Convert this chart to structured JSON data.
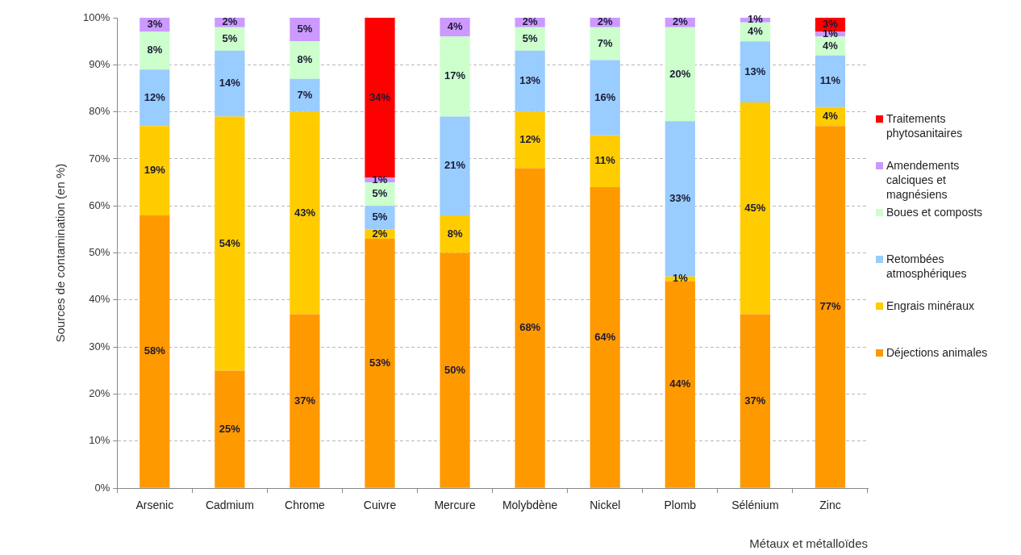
{
  "chart_data": {
    "type": "bar",
    "stacked": true,
    "ylabel": "Sources de contamination (en %)",
    "xlabel": "Métaux et métalloïdes",
    "categories": [
      "Arsenic",
      "Cadmium",
      "Chrome",
      "Cuivre",
      "Mercure",
      "Molybdène",
      "Nickel",
      "Plomb",
      "Sélénium",
      "Zinc"
    ],
    "ylim": [
      0,
      100
    ],
    "yticks": [
      {
        "value": 0,
        "label": "0%"
      },
      {
        "value": 10,
        "label": "10%"
      },
      {
        "value": 20,
        "label": "20%"
      },
      {
        "value": 30,
        "label": "30%"
      },
      {
        "value": 40,
        "label": "40%"
      },
      {
        "value": 50,
        "label": "50%"
      },
      {
        "value": 60,
        "label": "60%"
      },
      {
        "value": 70,
        "label": "70%"
      },
      {
        "value": 80,
        "label": "80%"
      },
      {
        "value": 90,
        "label": "90%"
      },
      {
        "value": 100,
        "label": "100%"
      }
    ],
    "grid": "y",
    "legend": "right",
    "series": [
      {
        "name": "Déjections animales",
        "color": "#ff9900",
        "values": [
          58,
          25,
          37,
          53,
          50,
          68,
          64,
          44,
          37,
          77
        ],
        "value_labels": [
          "58%",
          "25%",
          "37%",
          "53%",
          "50%",
          "68%",
          "64%",
          "44%",
          "37%",
          "77%"
        ]
      },
      {
        "name": "Engrais minéraux",
        "color": "#ffcc00",
        "values": [
          19,
          54,
          43,
          2,
          8,
          12,
          11,
          1,
          45,
          4
        ],
        "value_labels": [
          "19%",
          "54%",
          "43%",
          "2%",
          "8%",
          "12%",
          "11%",
          "1%",
          "45%",
          "4%"
        ]
      },
      {
        "name": "Retombées atmosphériques",
        "color": "#99ccff",
        "values": [
          12,
          14,
          7,
          5,
          21,
          13,
          16,
          33,
          13,
          11
        ],
        "value_labels": [
          "12%",
          "14%",
          "7%",
          "5%",
          "21%",
          "13%",
          "16%",
          "33%",
          "13%",
          "11%"
        ]
      },
      {
        "name": "Boues et composts",
        "color": "#ccffcc",
        "values": [
          8,
          5,
          8,
          5,
          17,
          5,
          7,
          20,
          4,
          4
        ],
        "value_labels": [
          "8%",
          "5%",
          "8%",
          "5%",
          "17%",
          "5%",
          "7%",
          "20%",
          "4%",
          "4%"
        ]
      },
      {
        "name": "Amendements calciques et magnésiens",
        "color": "#cc99ff",
        "values": [
          3,
          2,
          5,
          1,
          4,
          2,
          2,
          2,
          1,
          1
        ],
        "value_labels": [
          "3%",
          "2%",
          "5%",
          "1%",
          "4%",
          "2%",
          "2%",
          "2%",
          "1%",
          "1%"
        ]
      },
      {
        "name": "Traitements phytosanitaires",
        "color": "#ff0000",
        "values": [
          null,
          null,
          null,
          34,
          null,
          null,
          null,
          null,
          null,
          3
        ],
        "value_labels": [
          null,
          null,
          null,
          "34%",
          null,
          null,
          null,
          null,
          null,
          "3%"
        ]
      }
    ]
  }
}
